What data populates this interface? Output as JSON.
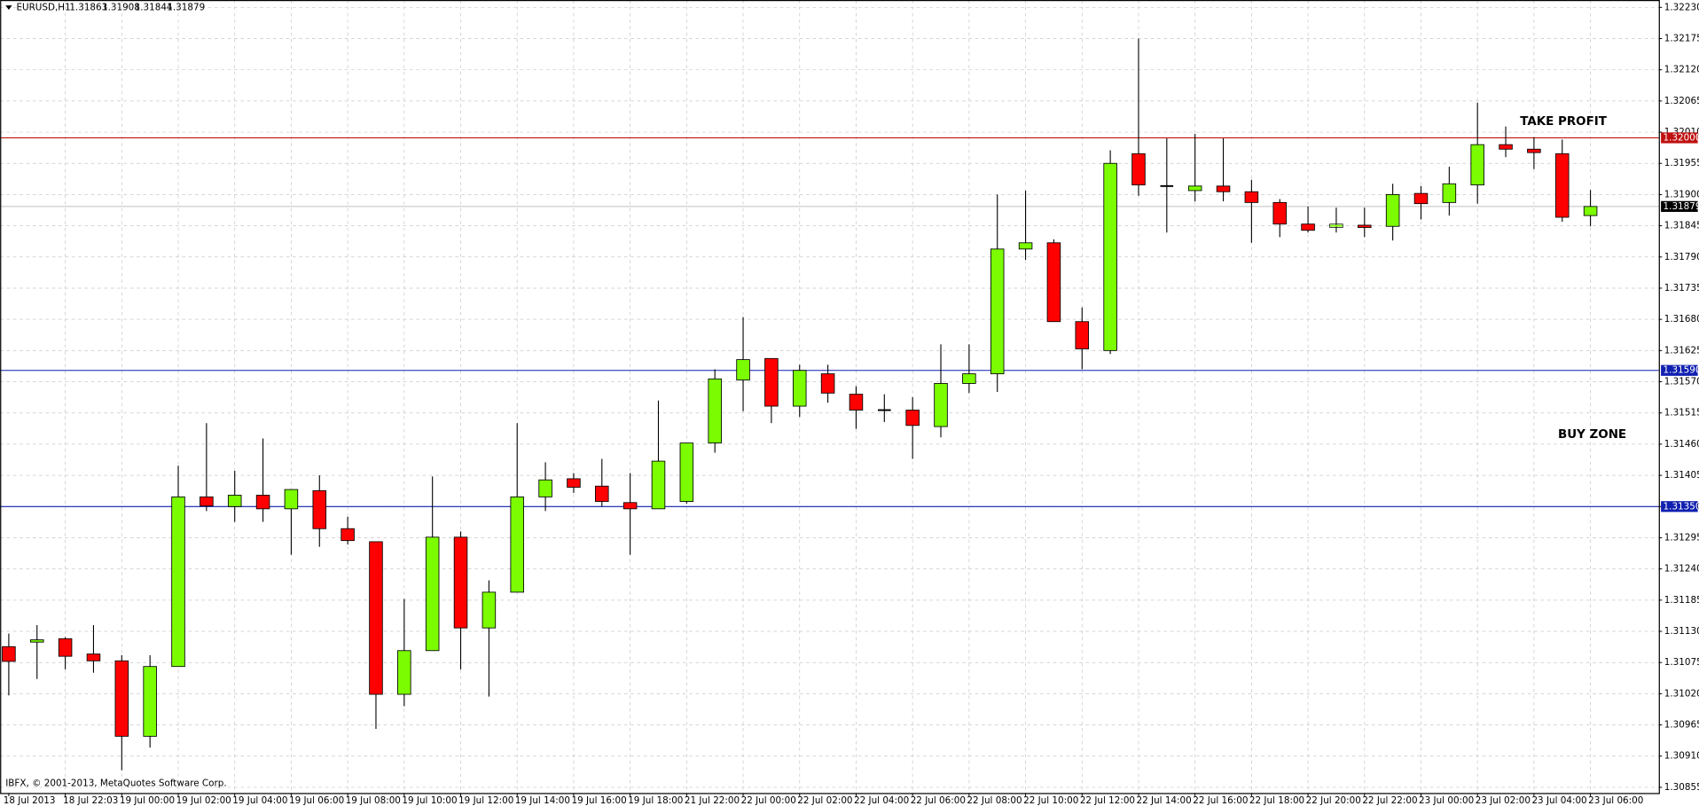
{
  "header": {
    "symbol": "EURUSD,H1",
    "ohlc": [
      1.31863,
      1.31908,
      1.31844,
      1.31879
    ]
  },
  "footer": "IBFX, © 2001-2013, MetaQuotes Software Corp.",
  "chart_data": {
    "type": "candlestick",
    "up_color": "#7cfc00",
    "down_color": "#ff0000",
    "wick_color": "#000000",
    "grid": true,
    "categories": [
      "18 Jul 2013",
      null,
      "18 Jul 22:03",
      null,
      "19 Jul 00:00",
      null,
      "19 Jul 02:00",
      null,
      "19 Jul 04:00",
      null,
      "19 Jul 06:00",
      null,
      "19 Jul 08:00",
      null,
      "19 Jul 10:00",
      null,
      "19 Jul 12:00",
      null,
      "19 Jul 14:00",
      null,
      "19 Jul 16:00",
      null,
      "19 Jul 18:00",
      null,
      "21 Jul 22:00",
      null,
      "22 Jul 00:00",
      null,
      "22 Jul 02:00",
      null,
      "22 Jul 04:00",
      null,
      "22 Jul 06:00",
      null,
      "22 Jul 08:00",
      null,
      "22 Jul 10:00",
      null,
      "22 Jul 12:00",
      null,
      "22 Jul 14:00",
      null,
      "22 Jul 16:00",
      null,
      "22 Jul 18:00",
      null,
      "22 Jul 20:00",
      null,
      "22 Jul 22:00",
      null,
      "23 Jul 00:00",
      null,
      "23 Jul 02:00",
      null,
      "23 Jul 04:00",
      null,
      "23 Jul 06:00"
    ],
    "ohlc": [
      [
        1.31103,
        1.31126,
        1.31017,
        1.31077
      ],
      [
        1.31111,
        1.31141,
        1.31046,
        1.31115
      ],
      [
        1.31117,
        1.3112,
        1.31063,
        1.31086
      ],
      [
        1.3109,
        1.31141,
        1.31057,
        1.31078
      ],
      [
        1.31078,
        1.31088,
        1.30885,
        1.30945
      ],
      [
        1.30945,
        1.31088,
        1.30925,
        1.31068
      ],
      [
        1.31068,
        1.31422,
        1.31068,
        1.31367
      ],
      [
        1.31367,
        1.31497,
        1.31342,
        1.31351
      ],
      [
        1.3135,
        1.31413,
        1.31323,
        1.3137
      ],
      [
        1.3137,
        1.3147,
        1.31323,
        1.31346
      ],
      [
        1.31346,
        1.3138,
        1.31265,
        1.3138
      ],
      [
        1.31378,
        1.31405,
        1.31279,
        1.31311
      ],
      [
        1.31311,
        1.31332,
        1.31283,
        1.3129
      ],
      [
        1.31288,
        1.31288,
        1.30958,
        1.31019
      ],
      [
        1.31019,
        1.31187,
        1.30998,
        1.31096
      ],
      [
        1.31096,
        1.31403,
        1.31096,
        1.31296
      ],
      [
        1.31296,
        1.31306,
        1.31063,
        1.31136
      ],
      [
        1.31136,
        1.3122,
        1.31015,
        1.31199
      ],
      [
        1.31199,
        1.31497,
        1.31199,
        1.31367
      ],
      [
        1.31367,
        1.31428,
        1.31342,
        1.31397
      ],
      [
        1.31399,
        1.31409,
        1.31374,
        1.31384
      ],
      [
        1.31386,
        1.31434,
        1.3135,
        1.31359
      ],
      [
        1.31357,
        1.31409,
        1.31265,
        1.31346
      ],
      [
        1.31346,
        1.31537,
        1.31346,
        1.3143
      ],
      [
        1.31359,
        1.31462,
        1.31355,
        1.31462
      ],
      [
        1.31462,
        1.31592,
        1.31445,
        1.31575
      ],
      [
        1.31573,
        1.31684,
        1.31518,
        1.31609
      ],
      [
        1.31611,
        1.31611,
        1.31497,
        1.31527
      ],
      [
        1.31527,
        1.316,
        1.31508,
        1.3159
      ],
      [
        1.31584,
        1.316,
        1.31533,
        1.3155
      ],
      [
        1.31548,
        1.31562,
        1.31487,
        1.3152
      ],
      [
        1.3152,
        1.31548,
        1.31499,
        1.3152
      ],
      [
        1.3152,
        1.31543,
        1.31434,
        1.31493
      ],
      [
        1.31491,
        1.31636,
        1.31472,
        1.31567
      ],
      [
        1.31567,
        1.31636,
        1.3155,
        1.31584
      ],
      [
        1.31584,
        1.319,
        1.31552,
        1.31804
      ],
      [
        1.31804,
        1.31907,
        1.31785,
        1.31815
      ],
      [
        1.31815,
        1.31821,
        1.31676,
        1.31676
      ],
      [
        1.31676,
        1.31701,
        1.31592,
        1.31628
      ],
      [
        1.31625,
        1.31978,
        1.31619,
        1.31955
      ],
      [
        1.31972,
        1.32175,
        1.31898,
        1.31917
      ],
      [
        1.31915,
        1.31999,
        1.31833,
        1.31915
      ],
      [
        1.31907,
        1.32007,
        1.31888,
        1.31915
      ],
      [
        1.31915,
        1.31999,
        1.31888,
        1.31905
      ],
      [
        1.31905,
        1.31926,
        1.31815,
        1.31886
      ],
      [
        1.31886,
        1.31892,
        1.31825,
        1.31848
      ],
      [
        1.31848,
        1.31879,
        1.31833,
        1.31837
      ],
      [
        1.31844,
        1.31877,
        1.31833,
        1.31846
      ],
      [
        1.31846,
        1.31877,
        1.31825,
        1.31842
      ],
      [
        1.31844,
        1.31919,
        1.31819,
        1.319
      ],
      [
        1.31902,
        1.31915,
        1.31856,
        1.31884
      ],
      [
        1.31886,
        1.31949,
        1.31863,
        1.31919
      ],
      [
        1.31917,
        1.32062,
        1.31884,
        1.31988
      ],
      [
        1.31988,
        1.3202,
        1.31966,
        1.3198
      ],
      [
        1.3198,
        1.32001,
        1.31945,
        1.31974
      ],
      [
        1.31972,
        1.31997,
        1.31852,
        1.3186
      ],
      [
        1.31863,
        1.31908,
        1.31844,
        1.31879
      ]
    ],
    "ylim": [
      1.30845,
      1.32243
    ],
    "yticks": [
      {
        "value": 1.3223,
        "label": "1.32230"
      },
      1.32175,
      {
        "value": 1.3212,
        "label": "1.32120"
      },
      1.32065,
      {
        "value": 1.3201,
        "label": "1.32010"
      },
      1.31955,
      {
        "value": 1.319,
        "label": "1.31900"
      },
      1.31845,
      {
        "value": 1.3179,
        "label": "1.31790"
      },
      1.31735,
      {
        "value": 1.3168,
        "label": "1.31680"
      },
      1.31625,
      {
        "value": 1.3157,
        "label": "1.31570"
      },
      1.31515,
      {
        "value": 1.3146,
        "label": "1.31460"
      },
      1.31405,
      {
        "value": 1.3135,
        "label": "1.31350"
      },
      1.31295,
      {
        "value": 1.3124,
        "label": "1.31240"
      },
      1.31185,
      {
        "value": 1.3113,
        "label": "1.31130"
      },
      1.31075,
      {
        "value": 1.3102,
        "label": "1.31020"
      },
      1.30965,
      {
        "value": 1.3091,
        "label": "1.30910"
      },
      1.30855
    ],
    "hlines": [
      {
        "value": 1.32,
        "label": "1.32000",
        "color": "#c01010"
      },
      {
        "value": 1.3159,
        "label": "1.31590",
        "color": "#1020b0"
      },
      {
        "value": 1.3135,
        "label": "1.31350",
        "color": "#1020b0"
      }
    ],
    "price_line": {
      "value": 1.31879,
      "label": "1.31879",
      "color": "#000000"
    },
    "annotations": [
      "TAKE PROFIT",
      "BUY ZONE"
    ]
  }
}
